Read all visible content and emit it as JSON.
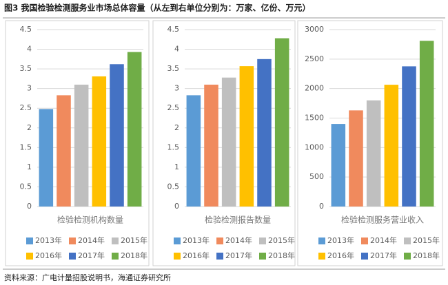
{
  "title": "图3  我国检验检测服务业市场总体容量（从左到右单位分别为：万家、亿份、万元）",
  "source": "资料来源：广电计量招股说明书，海通证券研究所",
  "chart_data": [
    {
      "type": "bar",
      "xlabel": "检验检测机构数量",
      "categories": [
        "2013年",
        "2014年",
        "2015年",
        "2016年",
        "2017年",
        "2018年"
      ],
      "values": [
        2.48,
        2.83,
        3.1,
        3.31,
        3.62,
        3.93
      ],
      "colors": [
        "#5b9bd5",
        "#f08a5d",
        "#bfbfbf",
        "#ffc000",
        "#4472c4",
        "#70ad47"
      ],
      "ylim": [
        0,
        4.5
      ],
      "yticks": [
        0,
        0.5,
        1,
        1.5,
        2,
        2.5,
        3,
        3.5,
        4,
        4.5
      ],
      "grid": true
    },
    {
      "type": "bar",
      "xlabel": "检验检测报告数量",
      "categories": [
        "2013年",
        "2014年",
        "2015年",
        "2016年",
        "2017年",
        "2018年"
      ],
      "values": [
        2.83,
        3.1,
        3.28,
        3.57,
        3.75,
        4.28
      ],
      "colors": [
        "#5b9bd5",
        "#f08a5d",
        "#bfbfbf",
        "#ffc000",
        "#4472c4",
        "#70ad47"
      ],
      "ylim": [
        0,
        4.5
      ],
      "yticks": [
        0,
        0.5,
        1,
        1.5,
        2,
        2.5,
        3,
        3.5,
        4,
        4.5
      ],
      "grid": true
    },
    {
      "type": "bar",
      "xlabel": "检验检测服务营业收入",
      "categories": [
        "2013年",
        "2014年",
        "2015年",
        "2016年",
        "2017年",
        "2018年"
      ],
      "values": [
        1400,
        1630,
        1800,
        2065,
        2377,
        2810
      ],
      "colors": [
        "#5b9bd5",
        "#f08a5d",
        "#bfbfbf",
        "#ffc000",
        "#4472c4",
        "#70ad47"
      ],
      "ylim": [
        0,
        3000
      ],
      "yticks": [
        0,
        500,
        1000,
        1500,
        2000,
        2500,
        3000
      ],
      "grid": true
    }
  ]
}
